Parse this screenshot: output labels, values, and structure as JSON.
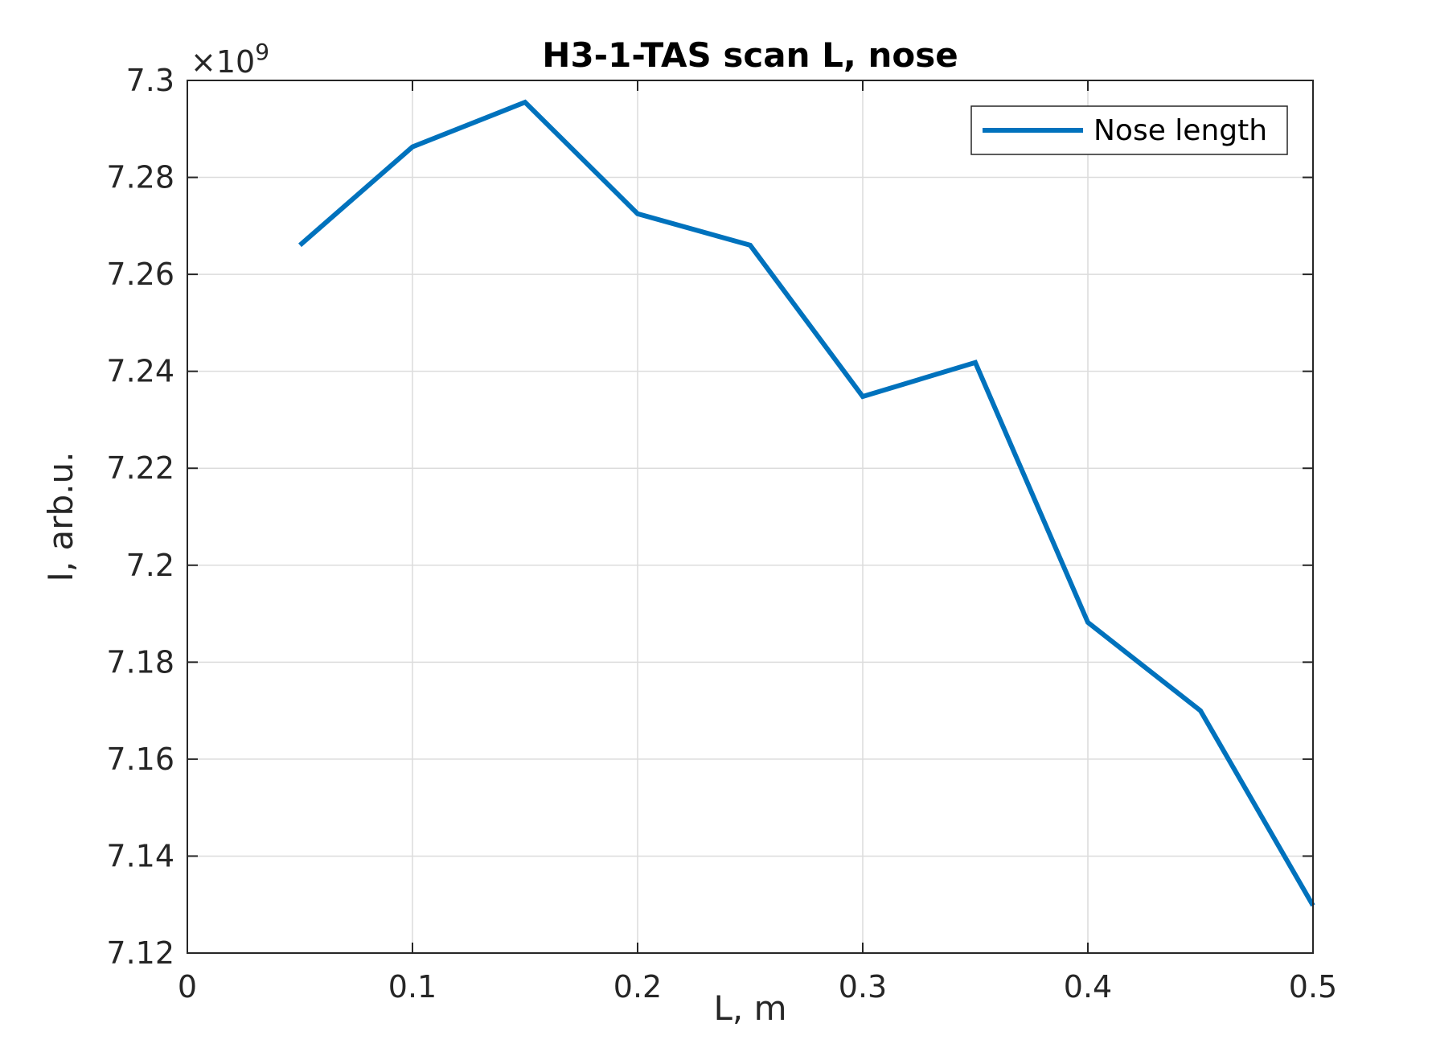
{
  "chart_data": {
    "type": "line",
    "title": "H3-1-TAS scan L, nose",
    "xlabel": "L, m",
    "ylabel": "I, arb.u.",
    "y_multiplier": {
      "prefix": "×10",
      "power": "9"
    },
    "xlim": [
      0,
      0.5
    ],
    "ylim": [
      7.12,
      7.3
    ],
    "x_ticks": [
      0,
      0.1,
      0.2,
      0.3,
      0.4,
      0.5
    ],
    "x_tick_labels": [
      "0",
      "0.1",
      "0.2",
      "0.3",
      "0.4",
      "0.5"
    ],
    "y_ticks": [
      7.12,
      7.14,
      7.16,
      7.18,
      7.2,
      7.22,
      7.24,
      7.26,
      7.28,
      7.3
    ],
    "y_tick_labels": [
      "7.12",
      "7.14",
      "7.16",
      "7.18",
      "7.2",
      "7.22",
      "7.24",
      "7.26",
      "7.28",
      "7.3"
    ],
    "grid": true,
    "legend_position": "top-right",
    "series": [
      {
        "name": "Nose length",
        "color": "#0072BD",
        "x": [
          0.05,
          0.1,
          0.15,
          0.2,
          0.25,
          0.3,
          0.35,
          0.4,
          0.45,
          0.5
        ],
        "y": [
          7.266,
          7.2863,
          7.2955,
          7.2725,
          7.266,
          7.2348,
          7.2418,
          7.1882,
          7.17,
          7.1298
        ]
      }
    ]
  }
}
